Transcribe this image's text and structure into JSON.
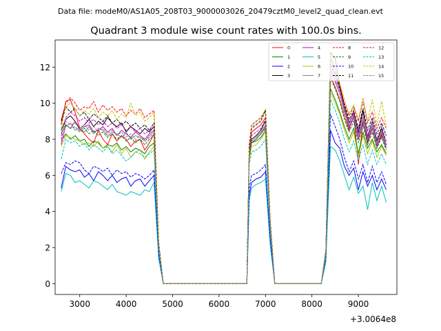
{
  "chart_data": {
    "type": "line",
    "suptitle": "Data file: modeM0/AS1A05_208T03_9000003026_20479cztM0_level2_quad_clean.evt",
    "title": "Quadrant 3 module wise count rates with 100.0s bins.",
    "xlabel": "",
    "ylabel": "",
    "x_offset_text": "+3.0064e8",
    "xlim": [
      2470,
      9830
    ],
    "ylim": [
      -0.6,
      13.5
    ],
    "xticks": [
      3000,
      4000,
      5000,
      6000,
      7000,
      8000,
      9000
    ],
    "yticks": [
      0,
      2,
      4,
      6,
      8,
      10,
      12
    ],
    "legend_position": "top-right",
    "legend_columns": 4,
    "grid": false,
    "x": [
      2600,
      2700,
      2800,
      2900,
      3000,
      3100,
      3200,
      3300,
      3400,
      3500,
      3600,
      3700,
      3800,
      3900,
      4000,
      4100,
      4200,
      4300,
      4400,
      4500,
      4600,
      4700,
      4800,
      4900,
      5000,
      5100,
      5200,
      5300,
      5400,
      5500,
      5600,
      5700,
      5800,
      5900,
      6000,
      6100,
      6200,
      6300,
      6400,
      6500,
      6600,
      6650,
      6700,
      6800,
      6900,
      7000,
      7100,
      7200,
      7300,
      7400,
      7500,
      7600,
      7700,
      7800,
      7900,
      8000,
      8100,
      8200,
      8300,
      8400,
      8500,
      8600,
      8700,
      8800,
      8900,
      9000,
      9100,
      9200,
      9300,
      9400,
      9500,
      9600
    ],
    "series": [
      {
        "name": "0",
        "color": "#ff0000",
        "dash": "solid",
        "values": [
          8.8,
          10.1,
          10.2,
          9.5,
          8.6,
          8.3,
          8.0,
          7.8,
          8.5,
          8.0,
          7.7,
          8.3,
          7.9,
          8.2,
          8.0,
          7.6,
          7.9,
          8.0,
          7.4,
          7.8,
          8.3,
          2.1,
          0,
          0,
          0,
          0,
          0,
          0,
          0,
          0,
          0,
          0,
          0,
          0,
          0,
          0,
          0,
          0,
          0,
          0,
          0,
          7.5,
          8.4,
          8.6,
          8.8,
          9.2,
          3.5,
          0,
          0,
          0,
          0,
          0,
          0,
          0,
          0,
          0,
          0,
          0,
          1.8,
          11.5,
          10.9,
          10.2,
          9.3,
          8.5,
          9.4,
          6.6,
          9.0,
          7.8,
          8.6,
          7.6,
          8.3,
          7.7
        ]
      },
      {
        "name": "1",
        "color": "#008000",
        "dash": "solid",
        "values": [
          7.9,
          8.3,
          8.0,
          8.2,
          7.9,
          8.0,
          7.6,
          7.9,
          7.8,
          7.5,
          7.7,
          7.6,
          7.8,
          7.4,
          7.6,
          7.3,
          7.5,
          7.4,
          7.2,
          7.6,
          7.8,
          1.9,
          0,
          0,
          0,
          0,
          0,
          0,
          0,
          0,
          0,
          0,
          0,
          0,
          0,
          0,
          0,
          0,
          0,
          0,
          0,
          7.0,
          7.8,
          7.9,
          8.1,
          8.5,
          3.2,
          0,
          0,
          0,
          0,
          0,
          0,
          0,
          0,
          0,
          0,
          0,
          1.6,
          10.8,
          10.2,
          9.5,
          8.7,
          8.0,
          8.6,
          7.2,
          8.4,
          7.5,
          8.0,
          7.3,
          7.7,
          7.2
        ]
      },
      {
        "name": "2",
        "color": "#0000ff",
        "dash": "solid",
        "values": [
          5.3,
          6.5,
          6.3,
          6.2,
          6.3,
          5.9,
          6.1,
          5.7,
          6.2,
          6.0,
          5.7,
          6.0,
          5.6,
          5.8,
          5.9,
          5.4,
          5.7,
          5.8,
          5.4,
          5.7,
          6.0,
          1.5,
          0,
          0,
          0,
          0,
          0,
          0,
          0,
          0,
          0,
          0,
          0,
          0,
          0,
          0,
          0,
          0,
          0,
          0,
          0,
          4.9,
          5.6,
          5.8,
          5.9,
          6.2,
          2.4,
          0,
          0,
          0,
          0,
          0,
          0,
          0,
          0,
          0,
          0,
          0,
          1.3,
          8.5,
          7.8,
          7.5,
          6.5,
          6.0,
          6.4,
          5.2,
          6.2,
          5.4,
          6.0,
          5.2,
          5.8,
          5.2
        ]
      },
      {
        "name": "3",
        "color": "#000000",
        "dash": "solid",
        "values": [
          8.5,
          9.1,
          9.3,
          9.0,
          8.6,
          8.8,
          9.1,
          8.7,
          9.0,
          8.8,
          9.2,
          8.9,
          8.7,
          8.9,
          8.4,
          8.7,
          8.5,
          8.3,
          8.6,
          8.4,
          8.7,
          2.1,
          0,
          0,
          0,
          0,
          0,
          0,
          0,
          0,
          0,
          0,
          0,
          0,
          0,
          0,
          0,
          0,
          0,
          0,
          0,
          7.3,
          8.0,
          8.2,
          8.5,
          9.0,
          3.3,
          0,
          0,
          0,
          0,
          0,
          0,
          0,
          0,
          0,
          0,
          0,
          1.8,
          12.8,
          12.5,
          11.0,
          9.8,
          8.9,
          9.5,
          8.4,
          9.6,
          8.1,
          9.0,
          7.9,
          8.6,
          7.7
        ]
      },
      {
        "name": "4",
        "color": "#bf00bf",
        "dash": "solid",
        "values": [
          7.7,
          8.8,
          8.6,
          9.0,
          8.5,
          8.7,
          8.8,
          8.4,
          8.5,
          8.7,
          8.4,
          8.6,
          8.2,
          8.5,
          8.3,
          8.1,
          8.4,
          8.2,
          8.0,
          8.3,
          8.5,
          2.0,
          0,
          0,
          0,
          0,
          0,
          0,
          0,
          0,
          0,
          0,
          0,
          0,
          0,
          0,
          0,
          0,
          0,
          0,
          0,
          7.1,
          7.8,
          8.0,
          8.3,
          8.7,
          3.2,
          0,
          0,
          0,
          0,
          0,
          0,
          0,
          0,
          0,
          0,
          0,
          1.7,
          11.8,
          11.2,
          10.5,
          9.6,
          8.6,
          9.2,
          8.0,
          9.0,
          7.9,
          8.6,
          7.6,
          8.2,
          7.5
        ]
      },
      {
        "name": "5",
        "color": "#00bfbf",
        "dash": "solid",
        "values": [
          5.1,
          6.1,
          6.0,
          5.6,
          5.7,
          5.5,
          5.3,
          5.7,
          5.6,
          5.4,
          5.2,
          5.5,
          5.1,
          5.0,
          4.9,
          5.1,
          5.0,
          4.9,
          5.2,
          5.1,
          5.6,
          1.4,
          0,
          0,
          0,
          0,
          0,
          0,
          0,
          0,
          0,
          0,
          0,
          0,
          0,
          0,
          0,
          0,
          0,
          0,
          0,
          4.6,
          5.3,
          5.5,
          5.6,
          5.8,
          2.2,
          0,
          0,
          0,
          0,
          0,
          0,
          0,
          0,
          0,
          0,
          0,
          1.2,
          7.6,
          7.4,
          6.8,
          6.0,
          5.2,
          5.9,
          5.0,
          5.4,
          4.1,
          5.6,
          4.6,
          5.4,
          4.5
        ]
      },
      {
        "name": "6",
        "color": "#bfbf00",
        "dash": "solid",
        "values": [
          7.6,
          8.2,
          8.1,
          8.0,
          7.9,
          7.7,
          7.8,
          7.6,
          7.9,
          7.5,
          7.6,
          7.3,
          7.7,
          7.2,
          7.5,
          7.0,
          7.3,
          7.4,
          6.9,
          7.3,
          7.6,
          1.9,
          0,
          0,
          0,
          0,
          0,
          0,
          0,
          0,
          0,
          0,
          0,
          0,
          0,
          0,
          0,
          0,
          0,
          0,
          0,
          6.8,
          7.6,
          7.7,
          8.0,
          8.4,
          3.1,
          0,
          0,
          0,
          0,
          0,
          0,
          0,
          0,
          0,
          0,
          0,
          1.6,
          10.6,
          10.0,
          9.4,
          8.5,
          7.8,
          8.4,
          7.0,
          8.2,
          7.2,
          7.9,
          7.0,
          7.6,
          7.1
        ]
      },
      {
        "name": "7",
        "color": "#808080",
        "dash": "solid",
        "values": [
          8.4,
          8.7,
          8.9,
          8.5,
          8.6,
          8.4,
          8.7,
          8.3,
          8.6,
          8.5,
          8.2,
          8.4,
          8.3,
          8.1,
          8.4,
          8.0,
          8.2,
          8.1,
          7.9,
          8.2,
          8.4,
          2.0,
          0,
          0,
          0,
          0,
          0,
          0,
          0,
          0,
          0,
          0,
          0,
          0,
          0,
          0,
          0,
          0,
          0,
          0,
          0,
          7.2,
          7.9,
          8.1,
          8.4,
          8.8,
          3.2,
          0,
          0,
          0,
          0,
          0,
          0,
          0,
          0,
          0,
          0,
          0,
          1.7,
          12.7,
          11.9,
          10.8,
          9.7,
          8.7,
          9.3,
          8.2,
          9.1,
          8.0,
          8.7,
          7.7,
          8.4,
          7.6
        ]
      },
      {
        "name": "8",
        "color": "#ff0000",
        "dash": "dashed",
        "values": [
          9.1,
          10.0,
          10.3,
          10.0,
          9.6,
          9.8,
          9.7,
          10.1,
          9.5,
          9.9,
          9.6,
          9.8,
          9.5,
          9.7,
          9.3,
          9.6,
          9.4,
          9.7,
          9.2,
          9.4,
          9.6,
          2.3,
          0,
          0,
          0,
          0,
          0,
          0,
          0,
          0,
          0,
          0,
          0,
          0,
          0,
          0,
          0,
          0,
          0,
          0,
          0,
          7.7,
          8.8,
          9.0,
          9.2,
          9.6,
          3.6,
          0,
          0,
          0,
          0,
          0,
          0,
          0,
          0,
          0,
          0,
          0,
          1.9,
          12.4,
          11.8,
          11.0,
          10.0,
          9.3,
          9.8,
          9.0,
          10.1,
          8.9,
          9.5,
          8.6,
          9.2,
          8.6
        ]
      },
      {
        "name": "9",
        "color": "#008000",
        "dash": "dashed",
        "values": [
          8.3,
          8.8,
          8.6,
          8.7,
          8.4,
          8.6,
          8.3,
          8.5,
          8.2,
          8.4,
          8.1,
          8.3,
          8.0,
          8.2,
          7.9,
          8.1,
          7.8,
          8.0,
          7.7,
          8.0,
          8.2,
          2.0,
          0,
          0,
          0,
          0,
          0,
          0,
          0,
          0,
          0,
          0,
          0,
          0,
          0,
          0,
          0,
          0,
          0,
          0,
          0,
          7.1,
          7.8,
          8.0,
          8.3,
          8.6,
          3.2,
          0,
          0,
          0,
          0,
          0,
          0,
          0,
          0,
          0,
          0,
          0,
          1.7,
          11.4,
          10.8,
          10.1,
          9.1,
          8.4,
          9.0,
          7.8,
          8.8,
          7.7,
          8.4,
          7.5,
          8.1,
          7.4
        ]
      },
      {
        "name": "10",
        "color": "#0000ff",
        "dash": "dashed",
        "values": [
          6.1,
          6.7,
          6.6,
          6.8,
          6.7,
          6.3,
          6.1,
          6.5,
          6.4,
          6.2,
          6.4,
          6.0,
          6.3,
          6.1,
          6.2,
          5.9,
          6.1,
          6.0,
          5.8,
          6.0,
          6.3,
          1.6,
          0,
          0,
          0,
          0,
          0,
          0,
          0,
          0,
          0,
          0,
          0,
          0,
          0,
          0,
          0,
          0,
          0,
          0,
          0,
          5.3,
          6.0,
          6.1,
          6.3,
          6.6,
          2.5,
          0,
          0,
          0,
          0,
          0,
          0,
          0,
          0,
          0,
          0,
          0,
          1.4,
          9.4,
          8.7,
          8.0,
          7.0,
          6.2,
          6.8,
          5.8,
          6.6,
          5.6,
          6.5,
          5.6,
          6.2,
          5.5
        ]
      },
      {
        "name": "11",
        "color": "#000000",
        "dash": "dashed",
        "values": [
          9.0,
          9.8,
          9.5,
          9.7,
          9.3,
          9.5,
          9.1,
          9.4,
          9.2,
          9.0,
          9.3,
          8.9,
          9.1,
          8.8,
          9.0,
          8.7,
          8.9,
          8.6,
          8.8,
          8.5,
          8.9,
          2.2,
          0,
          0,
          0,
          0,
          0,
          0,
          0,
          0,
          0,
          0,
          0,
          0,
          0,
          0,
          0,
          0,
          0,
          0,
          0,
          7.6,
          8.6,
          8.8,
          9.0,
          9.6,
          3.5,
          0,
          0,
          0,
          0,
          0,
          0,
          0,
          0,
          0,
          0,
          0,
          1.8,
          12.2,
          11.6,
          10.8,
          9.9,
          9.1,
          9.6,
          8.6,
          9.7,
          8.5,
          9.2,
          8.3,
          8.9,
          8.2
        ]
      },
      {
        "name": "12",
        "color": "#bf00bf",
        "dash": "dashed",
        "values": [
          8.0,
          9.2,
          9.5,
          9.3,
          9.0,
          9.2,
          8.9,
          9.1,
          8.8,
          9.0,
          8.7,
          8.9,
          8.6,
          8.8,
          8.5,
          8.7,
          8.4,
          8.6,
          8.3,
          8.5,
          8.7,
          2.1,
          0,
          0,
          0,
          0,
          0,
          0,
          0,
          0,
          0,
          0,
          0,
          0,
          0,
          0,
          0,
          0,
          0,
          0,
          0,
          7.4,
          8.2,
          8.4,
          8.6,
          9.1,
          3.4,
          0,
          0,
          0,
          0,
          0,
          0,
          0,
          0,
          0,
          0,
          0,
          1.8,
          12.1,
          11.5,
          10.7,
          9.8,
          8.9,
          9.5,
          8.3,
          9.4,
          8.2,
          9.0,
          8.0,
          8.7,
          7.9
        ]
      },
      {
        "name": "13",
        "color": "#00bfbf",
        "dash": "dashed",
        "values": [
          6.9,
          8.0,
          7.8,
          7.9,
          7.6,
          7.8,
          7.4,
          7.7,
          7.5,
          7.3,
          7.6,
          7.2,
          7.4,
          7.1,
          6.8,
          7.0,
          7.3,
          7.2,
          7.0,
          7.2,
          7.4,
          1.9,
          0,
          0,
          0,
          0,
          0,
          0,
          0,
          0,
          0,
          0,
          0,
          0,
          0,
          0,
          0,
          0,
          0,
          0,
          0,
          6.6,
          7.3,
          7.4,
          7.6,
          8.0,
          3.0,
          0,
          0,
          0,
          0,
          0,
          0,
          0,
          0,
          0,
          0,
          0,
          1.5,
          10.2,
          9.6,
          8.9,
          8.0,
          7.3,
          7.9,
          6.8,
          7.7,
          6.6,
          7.4,
          6.6,
          7.2,
          6.6
        ]
      },
      {
        "name": "14",
        "color": "#bfbf00",
        "dash": "dashed",
        "values": [
          8.6,
          9.8,
          10.0,
          9.7,
          9.3,
          9.6,
          9.4,
          9.7,
          9.2,
          9.5,
          9.3,
          9.6,
          9.1,
          9.4,
          9.2,
          10.0,
          9.3,
          9.5,
          9.0,
          9.2,
          9.5,
          2.2,
          0,
          0,
          0,
          0,
          0,
          0,
          0,
          0,
          0,
          0,
          0,
          0,
          0,
          0,
          0,
          0,
          0,
          0,
          0,
          7.6,
          8.7,
          8.9,
          9.1,
          9.7,
          3.5,
          0,
          0,
          0,
          0,
          0,
          0,
          0,
          0,
          0,
          0,
          0,
          1.9,
          12.5,
          11.9,
          11.1,
          10.2,
          9.4,
          9.9,
          9.1,
          10.3,
          9.0,
          10.2,
          8.8,
          10.1,
          8.7
        ]
      },
      {
        "name": "15",
        "color": "#808080",
        "dash": "dashed",
        "values": [
          8.2,
          9.0,
          8.8,
          8.9,
          8.6,
          8.8,
          8.5,
          8.7,
          8.4,
          8.6,
          8.3,
          8.5,
          8.2,
          8.4,
          8.1,
          8.3,
          8.0,
          8.2,
          7.9,
          8.1,
          8.3,
          2.0,
          0,
          0,
          0,
          0,
          0,
          0,
          0,
          0,
          0,
          0,
          0,
          0,
          0,
          0,
          0,
          0,
          0,
          0,
          0,
          7.2,
          7.9,
          8.1,
          8.4,
          8.8,
          3.3,
          0,
          0,
          0,
          0,
          0,
          0,
          0,
          0,
          0,
          0,
          0,
          1.7,
          11.9,
          11.3,
          10.5,
          9.5,
          8.8,
          9.3,
          8.1,
          9.2,
          8.0,
          8.8,
          7.8,
          8.5,
          7.7
        ]
      }
    ]
  }
}
